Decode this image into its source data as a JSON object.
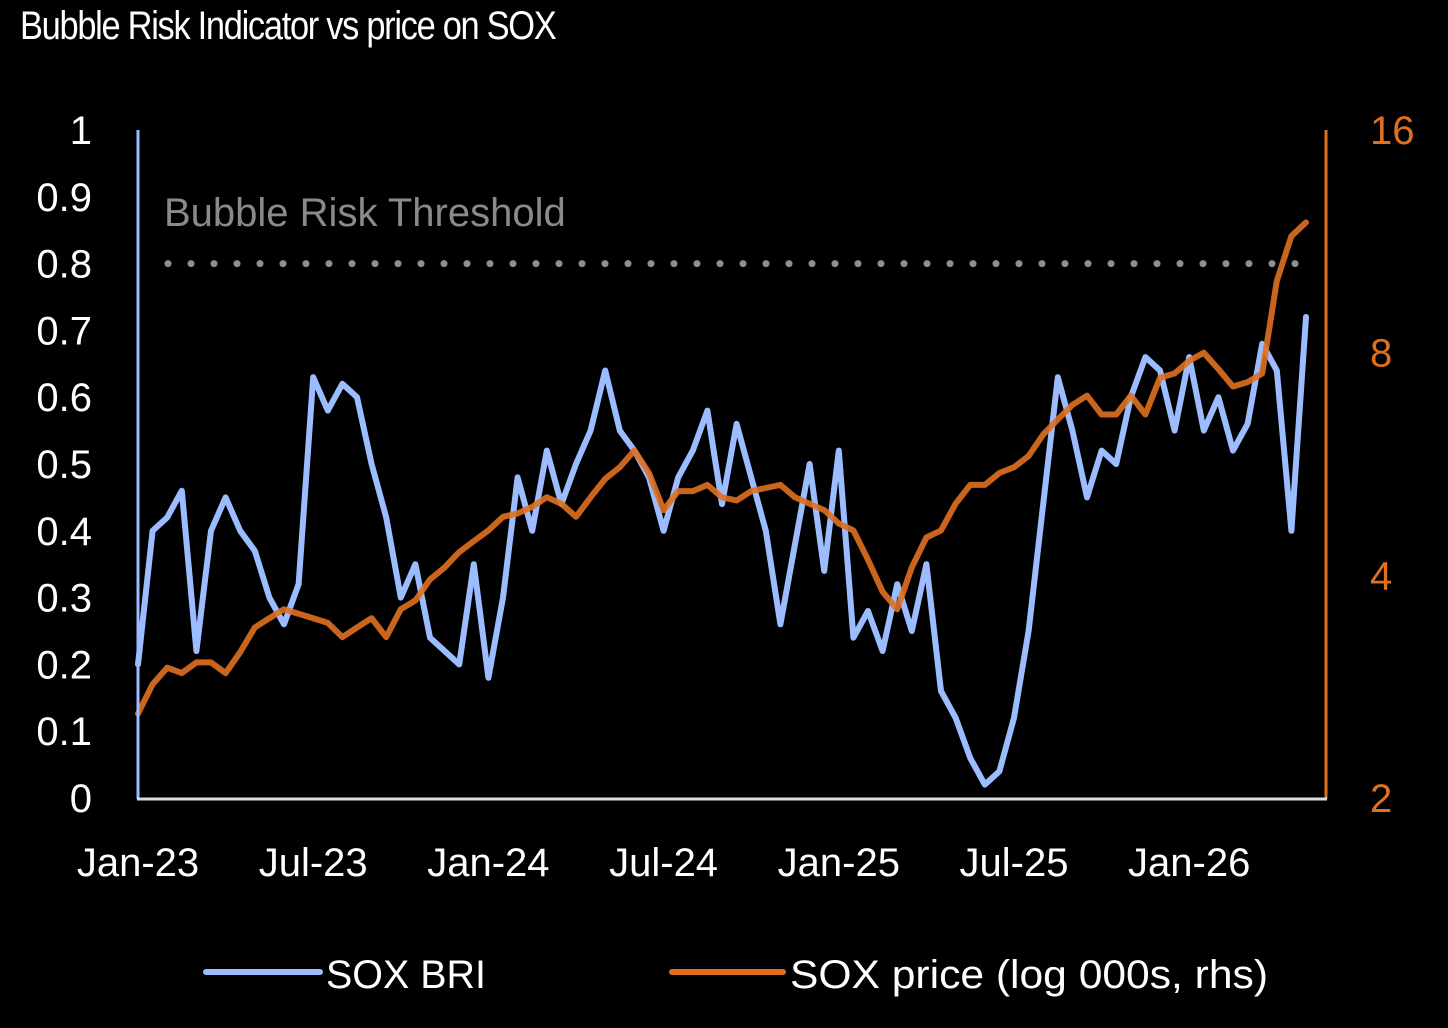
{
  "chart_data": {
    "type": "line",
    "title": "Bubble Risk Indicator vs price on SOX",
    "xlabel": "",
    "ylabel_left": "",
    "ylabel_right": "",
    "x_tick_labels": [
      "Jan-23",
      "Jul-23",
      "Jan-24",
      "Jul-24",
      "Jan-25",
      "Jul-25",
      "Jan-26"
    ],
    "y_left": {
      "range": [
        0,
        1
      ],
      "ticks": [
        "0",
        "0.1",
        "0.2",
        "0.3",
        "0.4",
        "0.5",
        "0.6",
        "0.7",
        "0.8",
        "0.9",
        "1"
      ],
      "scale": "linear"
    },
    "y_right": {
      "range": [
        2,
        16
      ],
      "ticks": [
        "2",
        "4",
        "8",
        "16"
      ],
      "scale": "log"
    },
    "grid": false,
    "legend_placement": "bottom",
    "annotations": [
      {
        "text": "Bubble Risk Threshold",
        "y_left_value": 0.8,
        "style": "dotted"
      }
    ],
    "x_months_since_jan23": [
      0,
      0.5,
      1,
      1.5,
      2,
      2.5,
      3,
      3.5,
      4,
      4.5,
      5,
      5.5,
      6,
      6.5,
      7,
      7.5,
      8,
      8.5,
      9,
      9.5,
      10,
      10.5,
      11,
      11.5,
      12,
      12.5,
      13,
      13.5,
      14,
      14.5,
      15,
      15.5,
      16,
      16.5,
      17,
      17.5,
      18,
      18.5,
      19,
      19.5,
      20,
      20.5,
      21,
      21.5,
      22,
      22.5,
      23,
      23.5,
      24,
      24.5,
      25,
      25.5,
      26,
      26.5,
      27,
      27.5,
      28,
      28.5,
      29,
      29.5,
      30,
      30.5,
      31,
      31.5,
      32,
      32.5,
      33,
      33.5,
      34,
      34.5,
      35,
      35.5,
      36,
      36.5,
      37,
      37.5,
      38,
      38.5,
      39,
      39.5,
      40
    ],
    "series": [
      {
        "name": "SOX BRI",
        "axis": "left",
        "color": "#9bbcff",
        "values": [
          0.2,
          0.4,
          0.42,
          0.46,
          0.22,
          0.4,
          0.45,
          0.4,
          0.37,
          0.3,
          0.26,
          0.32,
          0.63,
          0.58,
          0.62,
          0.6,
          0.5,
          0.42,
          0.3,
          0.35,
          0.24,
          0.22,
          0.2,
          0.35,
          0.18,
          0.3,
          0.48,
          0.4,
          0.52,
          0.44,
          0.5,
          0.55,
          0.64,
          0.55,
          0.52,
          0.48,
          0.4,
          0.48,
          0.52,
          0.58,
          0.44,
          0.56,
          0.48,
          0.4,
          0.26,
          0.38,
          0.5,
          0.34,
          0.52,
          0.24,
          0.28,
          0.22,
          0.32,
          0.25,
          0.35,
          0.16,
          0.12,
          0.06,
          0.02,
          0.04,
          0.12,
          0.25,
          0.44,
          0.63,
          0.55,
          0.45,
          0.52,
          0.5,
          0.6,
          0.66,
          0.64,
          0.55,
          0.66,
          0.55,
          0.6,
          0.52,
          0.56,
          0.68,
          0.64,
          0.4,
          0.72
        ]
      },
      {
        "name": "SOX price (log 000s, rhs)",
        "axis": "right",
        "color": "#e07020",
        "values": [
          2.6,
          2.85,
          3.0,
          2.95,
          3.05,
          3.05,
          2.95,
          3.15,
          3.4,
          3.5,
          3.6,
          3.55,
          3.5,
          3.45,
          3.3,
          3.4,
          3.5,
          3.3,
          3.6,
          3.7,
          3.95,
          4.1,
          4.3,
          4.45,
          4.6,
          4.8,
          4.85,
          4.95,
          5.1,
          5.0,
          4.8,
          5.1,
          5.4,
          5.6,
          5.9,
          5.5,
          4.9,
          5.2,
          5.2,
          5.3,
          5.1,
          5.05,
          5.2,
          5.25,
          5.3,
          5.1,
          5.0,
          4.9,
          4.7,
          4.6,
          4.2,
          3.8,
          3.6,
          4.1,
          4.5,
          4.6,
          5.0,
          5.3,
          5.3,
          5.5,
          5.6,
          5.8,
          6.2,
          6.5,
          6.8,
          7.0,
          6.6,
          6.6,
          7.0,
          6.6,
          7.4,
          7.5,
          7.8,
          8.0,
          7.6,
          7.2,
          7.3,
          7.5,
          10.0,
          11.5,
          12.0
        ]
      }
    ]
  },
  "legend": {
    "items": [
      {
        "label": "SOX BRI",
        "color": "#9bbcff"
      },
      {
        "label": "SOX price (log 000s, rhs)",
        "color": "#e07020"
      }
    ]
  }
}
